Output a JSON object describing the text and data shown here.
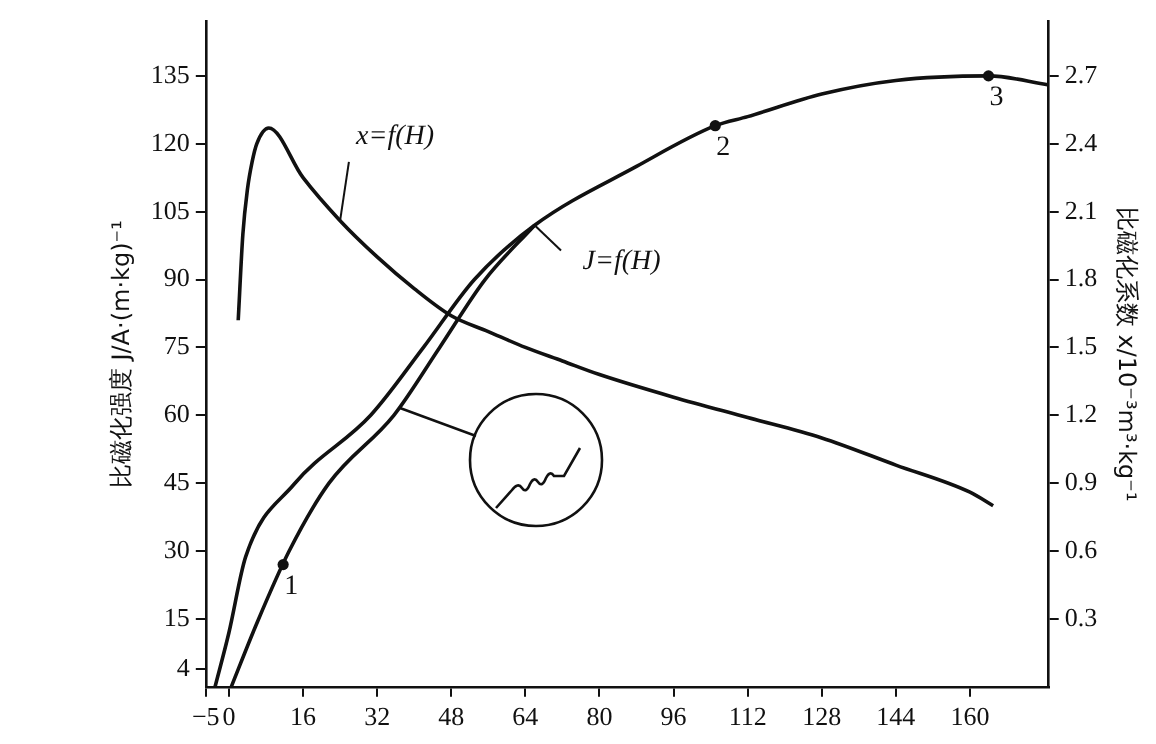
{
  "chart_data": {
    "type": "line",
    "xlabel": null,
    "ylabel": "比磁化强度 J/A·(m·kg)⁻¹",
    "y2label": "比磁化系数 x/10⁻³m³·kg⁻¹",
    "xlim": [
      -5,
      177
    ],
    "xticks": [
      -5,
      0,
      16,
      32,
      48,
      64,
      80,
      96,
      112,
      128,
      144,
      160
    ],
    "ylim": [
      0,
      147
    ],
    "yticks": [
      4,
      15,
      30,
      45,
      60,
      75,
      90,
      105,
      120,
      135
    ],
    "y2lim": [
      0,
      2.94
    ],
    "y2ticks": [
      0.3,
      0.6,
      0.9,
      1.2,
      1.5,
      1.8,
      2.1,
      2.4,
      2.7
    ],
    "grid": false,
    "legend": false,
    "marker": "none",
    "line_style": "solid",
    "series": [
      {
        "name": "x=f(H)",
        "color": "#111111",
        "axis": "y2",
        "x": [
          2,
          3,
          4,
          5,
          6,
          8.6,
          16,
          24,
          32,
          40,
          48,
          56,
          64,
          72,
          80,
          96,
          112,
          128,
          144,
          160,
          165
        ],
        "values": [
          1.62,
          2.0,
          2.2,
          2.32,
          2.4,
          2.47,
          2.25,
          2.06,
          1.9,
          1.76,
          1.64,
          1.57,
          1.5,
          1.44,
          1.38,
          1.28,
          1.19,
          1.1,
          0.98,
          0.86,
          0.8
        ]
      },
      {
        "name": "J=f(H)",
        "color": "#111111",
        "x": [
          -3,
          0,
          3.6,
          14,
          30.6,
          42,
          53,
          66,
          88,
          105,
          112,
          128,
          144,
          164,
          177
        ],
        "values": [
          0,
          12,
          28.7,
          44.7,
          60,
          75,
          90,
          102,
          115,
          124,
          126,
          131,
          134,
          135,
          133
        ]
      },
      {
        "color": "#111111",
        "x": [
          0.5,
          6,
          13,
          21.6,
          35.6,
          45.5,
          55.3,
          66
        ],
        "values": [
          0,
          14,
          30,
          45,
          60,
          75,
          90,
          102
        ]
      }
    ],
    "annotations": [
      {
        "text": "1",
        "x": 11.7,
        "y": 27
      },
      {
        "text": "2",
        "x": 105,
        "y": 124
      },
      {
        "text": "3",
        "x": 164,
        "y": 135
      }
    ]
  }
}
